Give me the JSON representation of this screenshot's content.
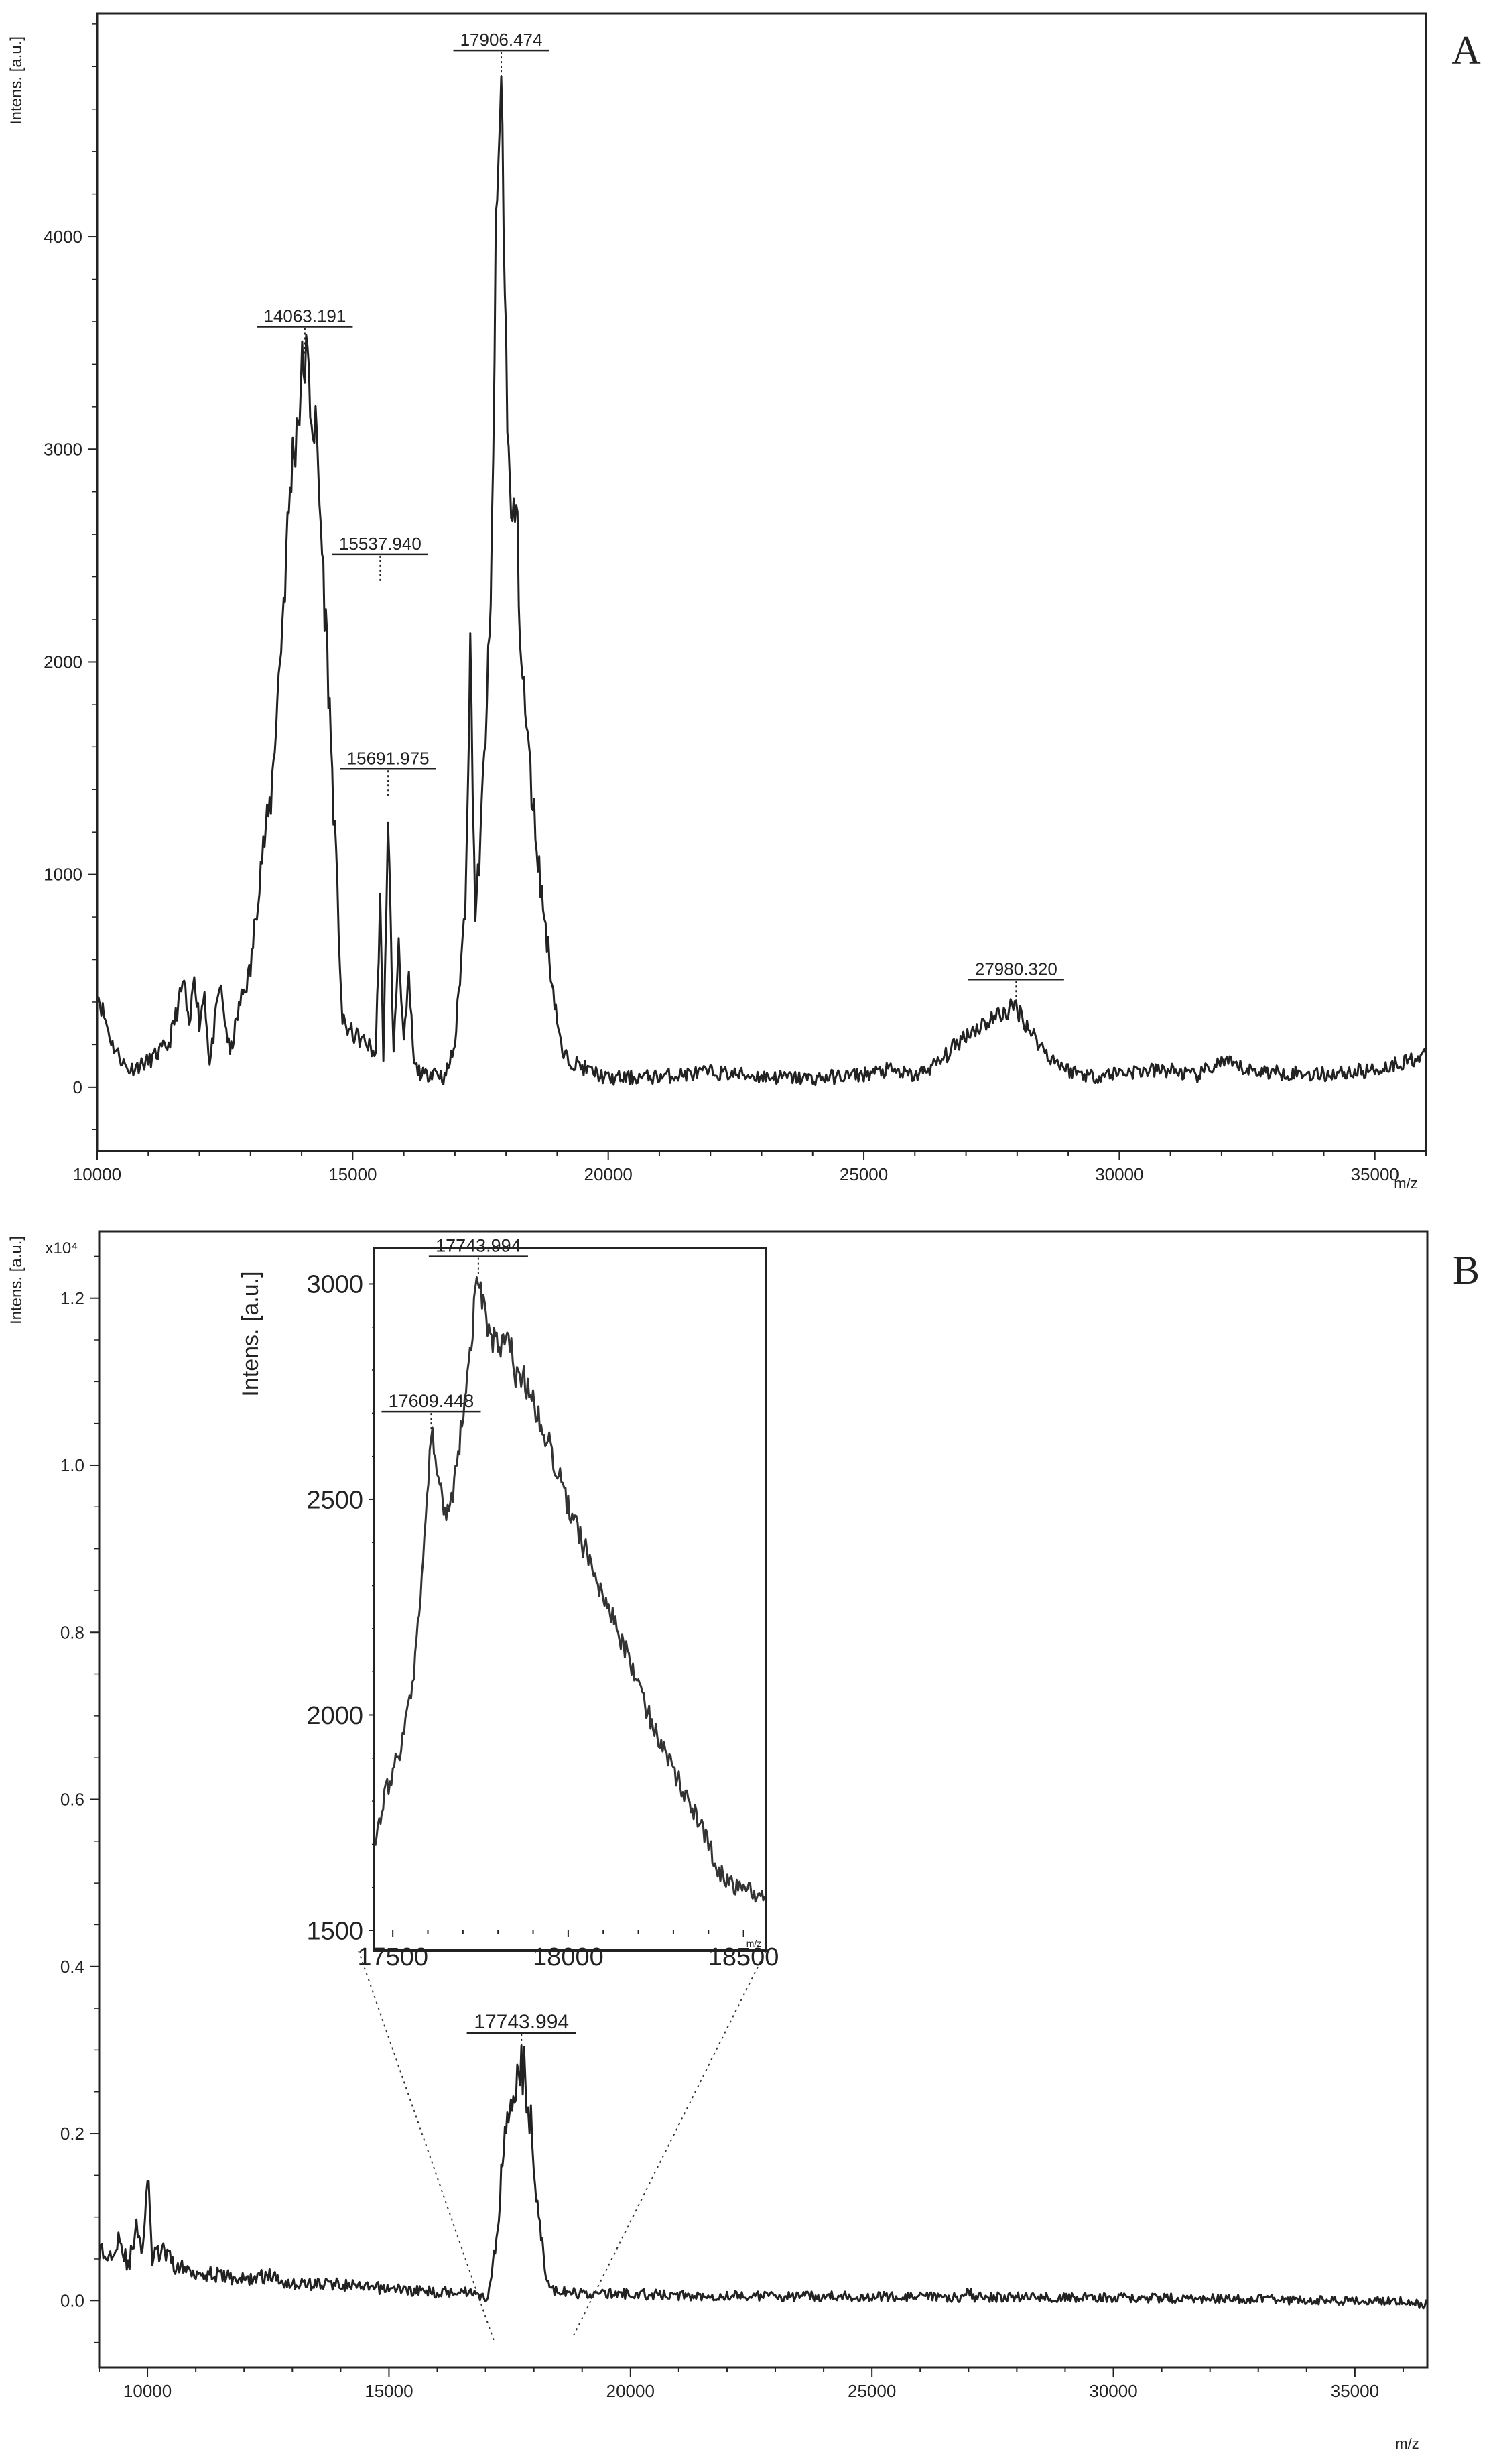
{
  "chart_data": [
    {
      "panel": "A",
      "type": "line",
      "ylabel": "Intens. [a.u.]",
      "xlabel": "m/z",
      "xlim": [
        10000,
        36000
      ],
      "ylim": [
        -300,
        5050
      ],
      "xticks": [
        10000,
        15000,
        20000,
        25000,
        30000,
        35000
      ],
      "yticks": [
        0,
        1000,
        2000,
        3000,
        4000
      ],
      "peaks": [
        {
          "x": 14063.191,
          "label": "14063.191",
          "y": 3450
        },
        {
          "x": 15537.94,
          "label": "15537.940",
          "y": 2380
        },
        {
          "x": 15691.975,
          "label": "15691.975",
          "y": 1370
        },
        {
          "x": 17906.474,
          "label": "17906.474",
          "y": 4750
        },
        {
          "x": 27980.32,
          "label": "27980.320",
          "y": 380
        }
      ],
      "series": [
        {
          "x": [
            10000,
            10300,
            10600,
            11000,
            11400,
            11700,
            11800,
            11900,
            12000,
            12100,
            12200,
            12400,
            12600,
            12800,
            13000,
            13200,
            13400,
            13600,
            13800,
            14063,
            14300,
            14500,
            14700,
            14800,
            15000,
            15300,
            15450,
            15537,
            15600,
            15691,
            15800,
            15900,
            16000,
            16100,
            16200,
            16400,
            16600,
            16800,
            17000,
            17200,
            17300,
            17400,
            17500,
            17600,
            17700,
            17800,
            17906,
            18000,
            18100,
            18200,
            18300,
            18500,
            18700,
            18900,
            19100,
            19300,
            19600,
            20000,
            21000,
            22000,
            23000,
            24000,
            25000,
            25500,
            26000,
            26500,
            27000,
            27500,
            27980,
            28300,
            28600,
            29000,
            29500,
            30000,
            31000,
            31500,
            32000,
            32500,
            33000,
            34000,
            35000,
            36000
          ],
          "y": [
            450,
            200,
            80,
            120,
            200,
            500,
            250,
            550,
            300,
            450,
            100,
            480,
            150,
            400,
            550,
            1050,
            1350,
            2100,
            2900,
            3450,
            3000,
            2050,
            900,
            300,
            250,
            200,
            150,
            900,
            100,
            1300,
            150,
            700,
            200,
            500,
            100,
            50,
            80,
            40,
            200,
            850,
            2050,
            800,
            1150,
            1700,
            2200,
            3900,
            4750,
            3450,
            2600,
            2750,
            2000,
            1400,
            900,
            500,
            150,
            120,
            80,
            40,
            50,
            70,
            50,
            40,
            60,
            80,
            50,
            120,
            250,
            320,
            380,
            250,
            150,
            80,
            50,
            70,
            80,
            50,
            120,
            80,
            70,
            60,
            80,
            150
          ]
        }
      ]
    },
    {
      "panel": "B",
      "type": "line",
      "ylabel": "Intens. [a.u.]",
      "y_multiplier": "x10⁴",
      "xlabel": "m/z",
      "xlim": [
        9000,
        36500
      ],
      "ylim": [
        -0.08,
        1.28
      ],
      "xticks": [
        10000,
        15000,
        20000,
        25000,
        30000,
        35000
      ],
      "yticks": [
        "0.0",
        "0.2",
        "0.4",
        "0.6",
        "0.8",
        "1.0",
        "1.2"
      ],
      "peaks": [
        {
          "x": 17743.994,
          "label": "17743.994",
          "y": 0.29
        }
      ],
      "series": [
        {
          "x": [
            9000,
            9200,
            9400,
            9600,
            9800,
            9900,
            10000,
            10100,
            10300,
            10600,
            11000,
            11500,
            12000,
            12500,
            13000,
            13500,
            14000,
            14500,
            15000,
            15500,
            16000,
            16500,
            16800,
            17000,
            17100,
            17200,
            17300,
            17400,
            17500,
            17600,
            17743,
            17850,
            18000,
            18100,
            18200,
            18300,
            18400,
            18600,
            19000,
            20000,
            21000,
            22000,
            23000,
            24000,
            25000,
            26000,
            26900,
            27000,
            27100,
            28000,
            29000,
            30000,
            31000,
            32000,
            33000,
            34000,
            35000,
            36000,
            36500
          ],
          "y": [
            0.06,
            0.05,
            0.08,
            0.04,
            0.09,
            0.06,
            0.15,
            0.05,
            0.06,
            0.04,
            0.035,
            0.03,
            0.025,
            0.03,
            0.02,
            0.02,
            0.02,
            0.015,
            0.015,
            0.012,
            0.01,
            0.012,
            0.01,
            0.0,
            0.02,
            0.06,
            0.13,
            0.2,
            0.24,
            0.27,
            0.29,
            0.25,
            0.18,
            0.1,
            0.05,
            0.02,
            0.012,
            0.01,
            0.008,
            0.008,
            0.006,
            0.006,
            0.005,
            0.005,
            0.005,
            0.004,
            0.004,
            0.012,
            0.004,
            0.004,
            0.004,
            0.003,
            0.003,
            0.002,
            0.002,
            0.0,
            0.0,
            0.0,
            -0.005
          ]
        }
      ]
    },
    {
      "panel": "B-inset",
      "type": "line",
      "ylabel": "Intens. [a.u.]",
      "xlabel": "m/z",
      "xlim": [
        17450,
        18560
      ],
      "ylim": [
        1500,
        3080
      ],
      "xticks": [
        17500,
        18000,
        18500
      ],
      "yticks": [
        1500,
        2000,
        2500,
        3000
      ],
      "peaks": [
        {
          "x": 17609.448,
          "label": "17609.448",
          "y": 2660
        },
        {
          "x": 17743.994,
          "label": "17743.994",
          "y": 3020
        }
      ],
      "series": [
        {
          "x": [
            17450,
            17480,
            17520,
            17560,
            17590,
            17609,
            17630,
            17660,
            17690,
            17720,
            17743,
            17770,
            17800,
            17830,
            17850,
            17870,
            17900,
            17950,
            18000,
            18050,
            18100,
            18150,
            18200,
            18250,
            18300,
            18350,
            18400,
            18430,
            18450,
            18500,
            18560
          ],
          "y": [
            1720,
            1820,
            1920,
            2080,
            2400,
            2660,
            2540,
            2450,
            2620,
            2850,
            3020,
            2890,
            2850,
            2880,
            2780,
            2790,
            2720,
            2620,
            2480,
            2380,
            2280,
            2180,
            2070,
            1960,
            1870,
            1790,
            1700,
            1640,
            1610,
            1600,
            1580
          ]
        }
      ]
    }
  ]
}
